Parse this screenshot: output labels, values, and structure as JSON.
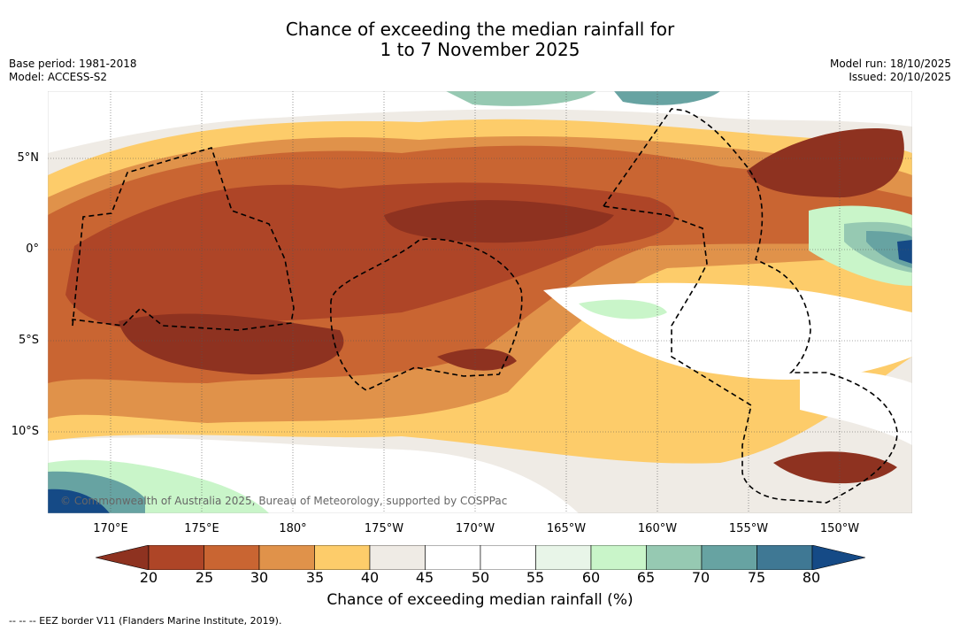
{
  "title": {
    "line1": "Chance of exceeding the median rainfall for",
    "line2": "1 to 7 November 2025"
  },
  "meta": {
    "base_period": "Base period: 1981-2018",
    "model": "Model: ACCESS-S2",
    "model_run": "Model run: 18/10/2025",
    "issued": "Issued: 20/10/2025"
  },
  "lat_labels": [
    "5°N",
    "0°",
    "5°S",
    "10°S"
  ],
  "lon_labels": [
    "170°E",
    "175°E",
    "180°",
    "175°W",
    "170°W",
    "165°W",
    "160°W",
    "155°W",
    "150°W"
  ],
  "colorbar": {
    "title": "Chance of exceeding median rainfall (%)",
    "ticks": [
      "20",
      "25",
      "30",
      "35",
      "40",
      "45",
      "50",
      "55",
      "60",
      "65",
      "70",
      "75",
      "80"
    ],
    "colors": [
      "#8e3220",
      "#ae4527",
      "#c96532",
      "#e0924a",
      "#fdcc6a",
      "#efebe5",
      "#ffffff",
      "#ffffff",
      "#e8f5e8",
      "#c9f5c9",
      "#96c9b2",
      "#67a3a2",
      "#3f7894",
      "#154a86"
    ]
  },
  "copyright": "© Commonwealth of Australia 2025, Bureau of Meteorology, supported by COSPPac",
  "footnote": "-- -- -- EEZ border V11 (Flanders Marine Institute, 2019)."
}
